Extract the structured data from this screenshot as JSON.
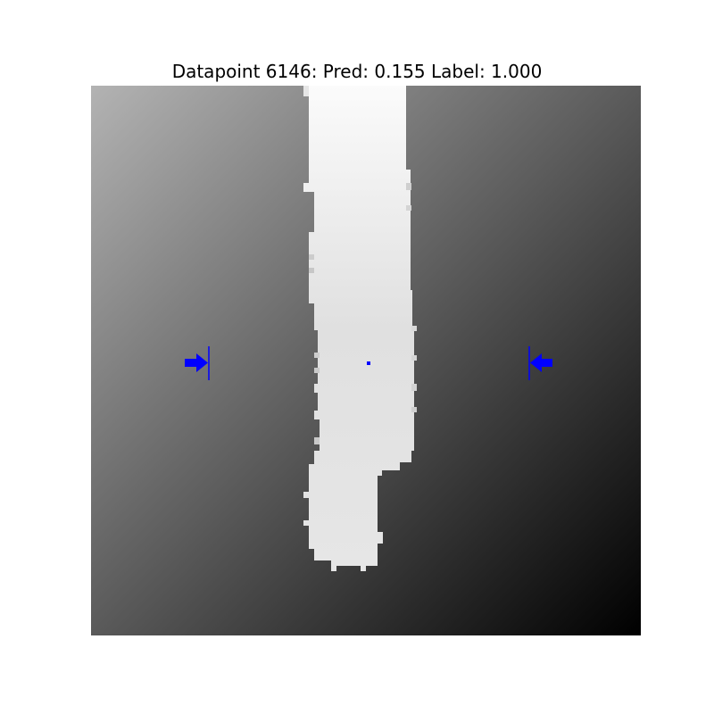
{
  "figure": {
    "title": "Datapoint 6146: Pred: 0.155 Label: 1.000",
    "marker_color": "#0000ff"
  }
}
